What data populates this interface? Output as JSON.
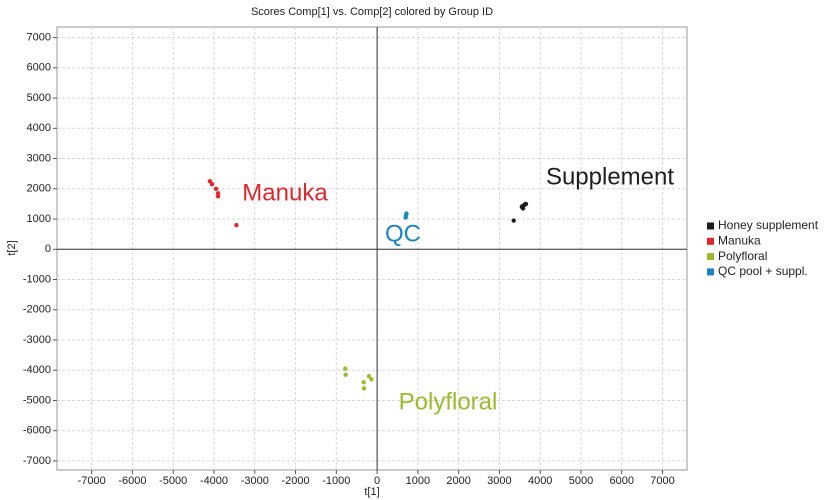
{
  "chart_data": {
    "type": "scatter",
    "title": "Scores Comp[1] vs. Comp[2] colored by Group ID",
    "x_label": "t[1]",
    "y_label": "t[2]",
    "xlim": [
      -7850,
      7600
    ],
    "ylim": [
      -7300,
      7350
    ],
    "xticks": [
      -7000,
      -6000,
      -5000,
      -4000,
      -3000,
      -2000,
      -1000,
      0,
      1000,
      2000,
      3000,
      4000,
      5000,
      6000,
      7000
    ],
    "yticks": [
      -7000,
      -6000,
      -5000,
      -4000,
      -3000,
      -2000,
      -1000,
      0,
      1000,
      2000,
      3000,
      4000,
      5000,
      6000,
      7000
    ],
    "grid": true,
    "legend": "right",
    "series": [
      {
        "name": "Honey supplement",
        "color": "#1e1e1e",
        "x": [
          3350,
          3550,
          3600,
          3650,
          3580,
          3620,
          3560
        ],
        "values": [
          950,
          1400,
          1450,
          1500,
          1350,
          1480,
          1420
        ]
      },
      {
        "name": "Manuka",
        "color": "#e0262b",
        "x": [
          -4100,
          -4050,
          -3950,
          -3900,
          -3900,
          -3450
        ],
        "values": [
          2250,
          2150,
          2000,
          1850,
          1750,
          800
        ]
      },
      {
        "name": "Polyfloral",
        "color": "#9bbb2a",
        "x": [
          -780,
          -770,
          -330,
          -320,
          -200,
          -140
        ],
        "values": [
          -3950,
          -4150,
          -4400,
          -4600,
          -4200,
          -4300
        ]
      },
      {
        "name": "QC pool + suppl.",
        "color": "#1a86c0",
        "x": [
          720,
          700,
          710
        ],
        "values": [
          1180,
          1050,
          1120
        ]
      }
    ],
    "annotations": [
      {
        "text": "Supplement",
        "color": "#1e1e1e"
      },
      {
        "text": "Manuka",
        "color": "#e0262b"
      },
      {
        "text": "QC",
        "color": "#1a86c0"
      },
      {
        "text": "Polyfloral",
        "color": "#9bbb2a"
      }
    ]
  }
}
